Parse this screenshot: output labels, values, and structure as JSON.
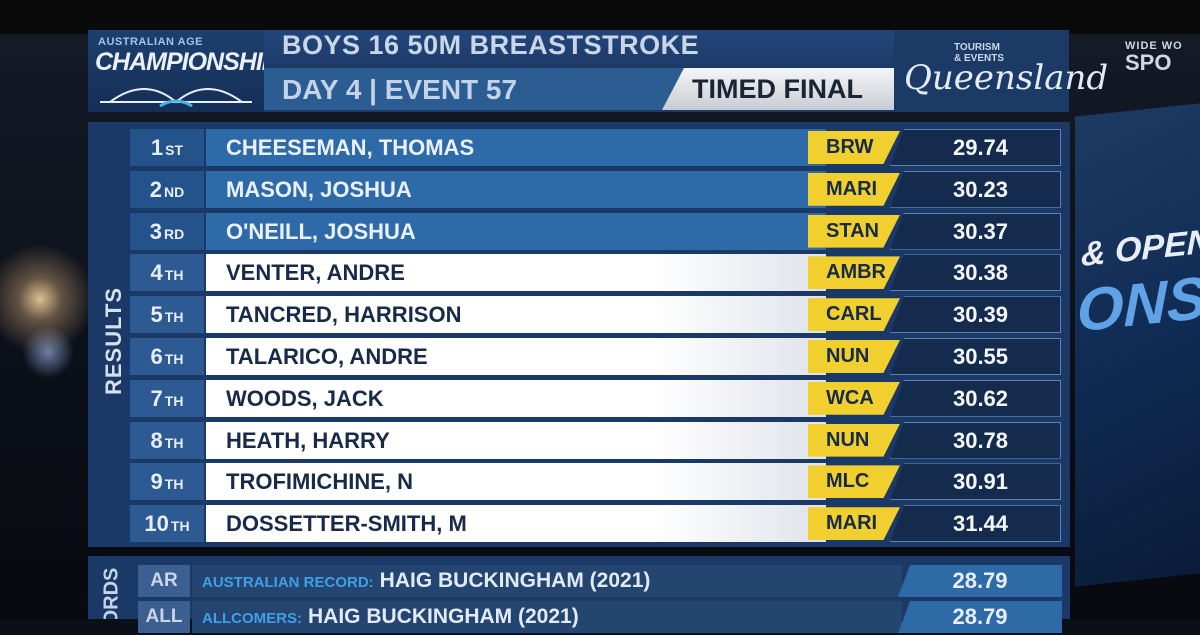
{
  "logo": {
    "small": "AUSTRALIAN AGE",
    "main": "CHAMPIONSHIPS"
  },
  "header": {
    "event_title": "BOYS 16 50M BREASTSTROKE",
    "event_info": "DAY 4 | EVENT 57",
    "heat_type": "TIMED FINAL"
  },
  "sponsor": {
    "line1": "TOURISM",
    "line2": "& EVENTS",
    "name": "Queensland"
  },
  "broadcaster": {
    "line1": "WIDE WO",
    "line2": "SPO"
  },
  "background_screen": {
    "line1": "& OPEN",
    "line2": "ONSHI"
  },
  "results": {
    "label": "RESULTS",
    "rows": [
      {
        "rank": "1",
        "suffix": "ST",
        "name": "CHEESEMAN, THOMAS",
        "club": "BRW",
        "time": "29.74"
      },
      {
        "rank": "2",
        "suffix": "ND",
        "name": "MASON, JOSHUA",
        "club": "MARI",
        "time": "30.23"
      },
      {
        "rank": "3",
        "suffix": "RD",
        "name": "O'NEILL, JOSHUA",
        "club": "STAN",
        "time": "30.37"
      },
      {
        "rank": "4",
        "suffix": "TH",
        "name": "VENTER, ANDRE",
        "club": "AMBR",
        "time": "30.38"
      },
      {
        "rank": "5",
        "suffix": "TH",
        "name": "TANCRED, HARRISON",
        "club": "CARL",
        "time": "30.39"
      },
      {
        "rank": "6",
        "suffix": "TH",
        "name": "TALARICO, ANDRE",
        "club": "NUN",
        "time": "30.55"
      },
      {
        "rank": "7",
        "suffix": "TH",
        "name": "WOODS, JACK",
        "club": "WCA",
        "time": "30.62"
      },
      {
        "rank": "8",
        "suffix": "TH",
        "name": "HEATH, HARRY",
        "club": "NUN",
        "time": "30.78"
      },
      {
        "rank": "9",
        "suffix": "TH",
        "name": "TROFIMICHINE, N",
        "club": "MLC",
        "time": "30.91"
      },
      {
        "rank": "10",
        "suffix": "TH",
        "name": "DOSSETTER-SMITH, M",
        "club": "MARI",
        "time": "31.44"
      }
    ]
  },
  "records": {
    "label": "ORDS",
    "rows": [
      {
        "code": "AR",
        "label": "AUSTRALIAN RECORD:",
        "holder": "HAIG BUCKINGHAM (2021)",
        "time": "28.79"
      },
      {
        "code": "ALL",
        "label": "ALLCOMERS:",
        "holder": "HAIG BUCKINGHAM (2021)",
        "time": "28.79"
      }
    ]
  },
  "colors": {
    "club_badge": "#f1cf2f",
    "medal_row": "#2f6aa8",
    "panel": "#1b3966"
  }
}
